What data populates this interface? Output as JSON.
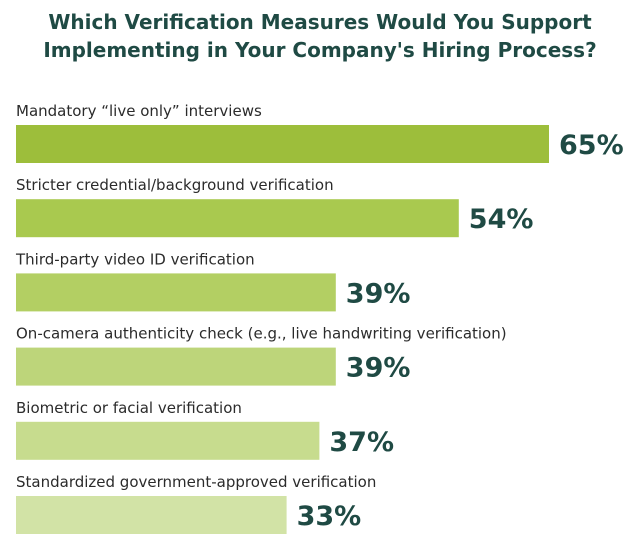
{
  "chart_data": {
    "type": "bar",
    "orientation": "horizontal",
    "title": "Which Verification Measures Would You Support Implementing in Your Company's Hiring Process?",
    "title_lines": [
      "Which Verification Measures Would You Support",
      "Implementing in Your Company's Hiring Process?"
    ],
    "categories": [
      "Mandatory “live only” interviews",
      "Stricter credential/background verification",
      "Third-party video ID verification",
      "On-camera authenticity check (e.g., live handwriting verification)",
      "Biometric or facial verification",
      "Standardized government-approved verification"
    ],
    "values": [
      65,
      54,
      39,
      39,
      37,
      33
    ],
    "value_labels": [
      "65%",
      "54%",
      "39%",
      "39%",
      "37%",
      "33%"
    ],
    "bar_colors": [
      "#9dbe3b",
      "#a9c94f",
      "#b3cf63",
      "#bdd57a",
      "#c7dc8e",
      "#d2e3a6"
    ],
    "xlim": [
      0,
      65
    ],
    "grid": false,
    "legend": "none"
  }
}
